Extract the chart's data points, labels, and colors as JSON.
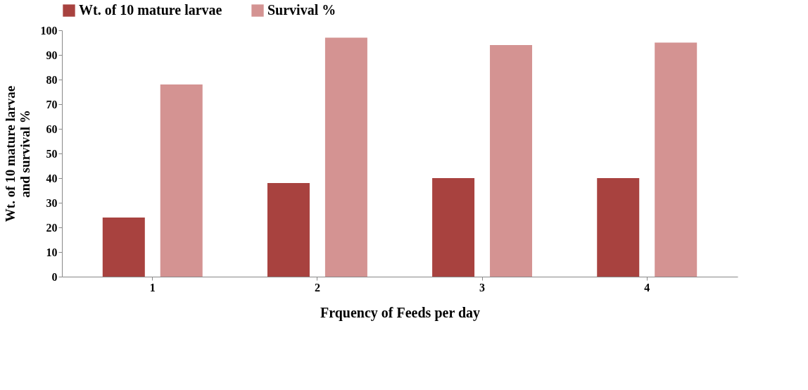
{
  "chart_data": {
    "type": "bar",
    "xlabel": "Frquency of Feeds per day",
    "ylabel": "Wt. of 10 mature larvae and survival %",
    "categories": [
      "1",
      "2",
      "3",
      "4"
    ],
    "series": [
      {
        "name": "Wt. of 10 mature larvae",
        "color": "#a8423f",
        "values": [
          24,
          38,
          40,
          40
        ]
      },
      {
        "name": "Survival %",
        "color": "#d49392",
        "values": [
          78,
          97,
          94,
          95
        ]
      }
    ],
    "ylim": [
      0,
      100
    ],
    "yticks": [
      0,
      10,
      20,
      30,
      40,
      50,
      60,
      70,
      80,
      90,
      100
    ],
    "grid": false,
    "legend": "top"
  }
}
